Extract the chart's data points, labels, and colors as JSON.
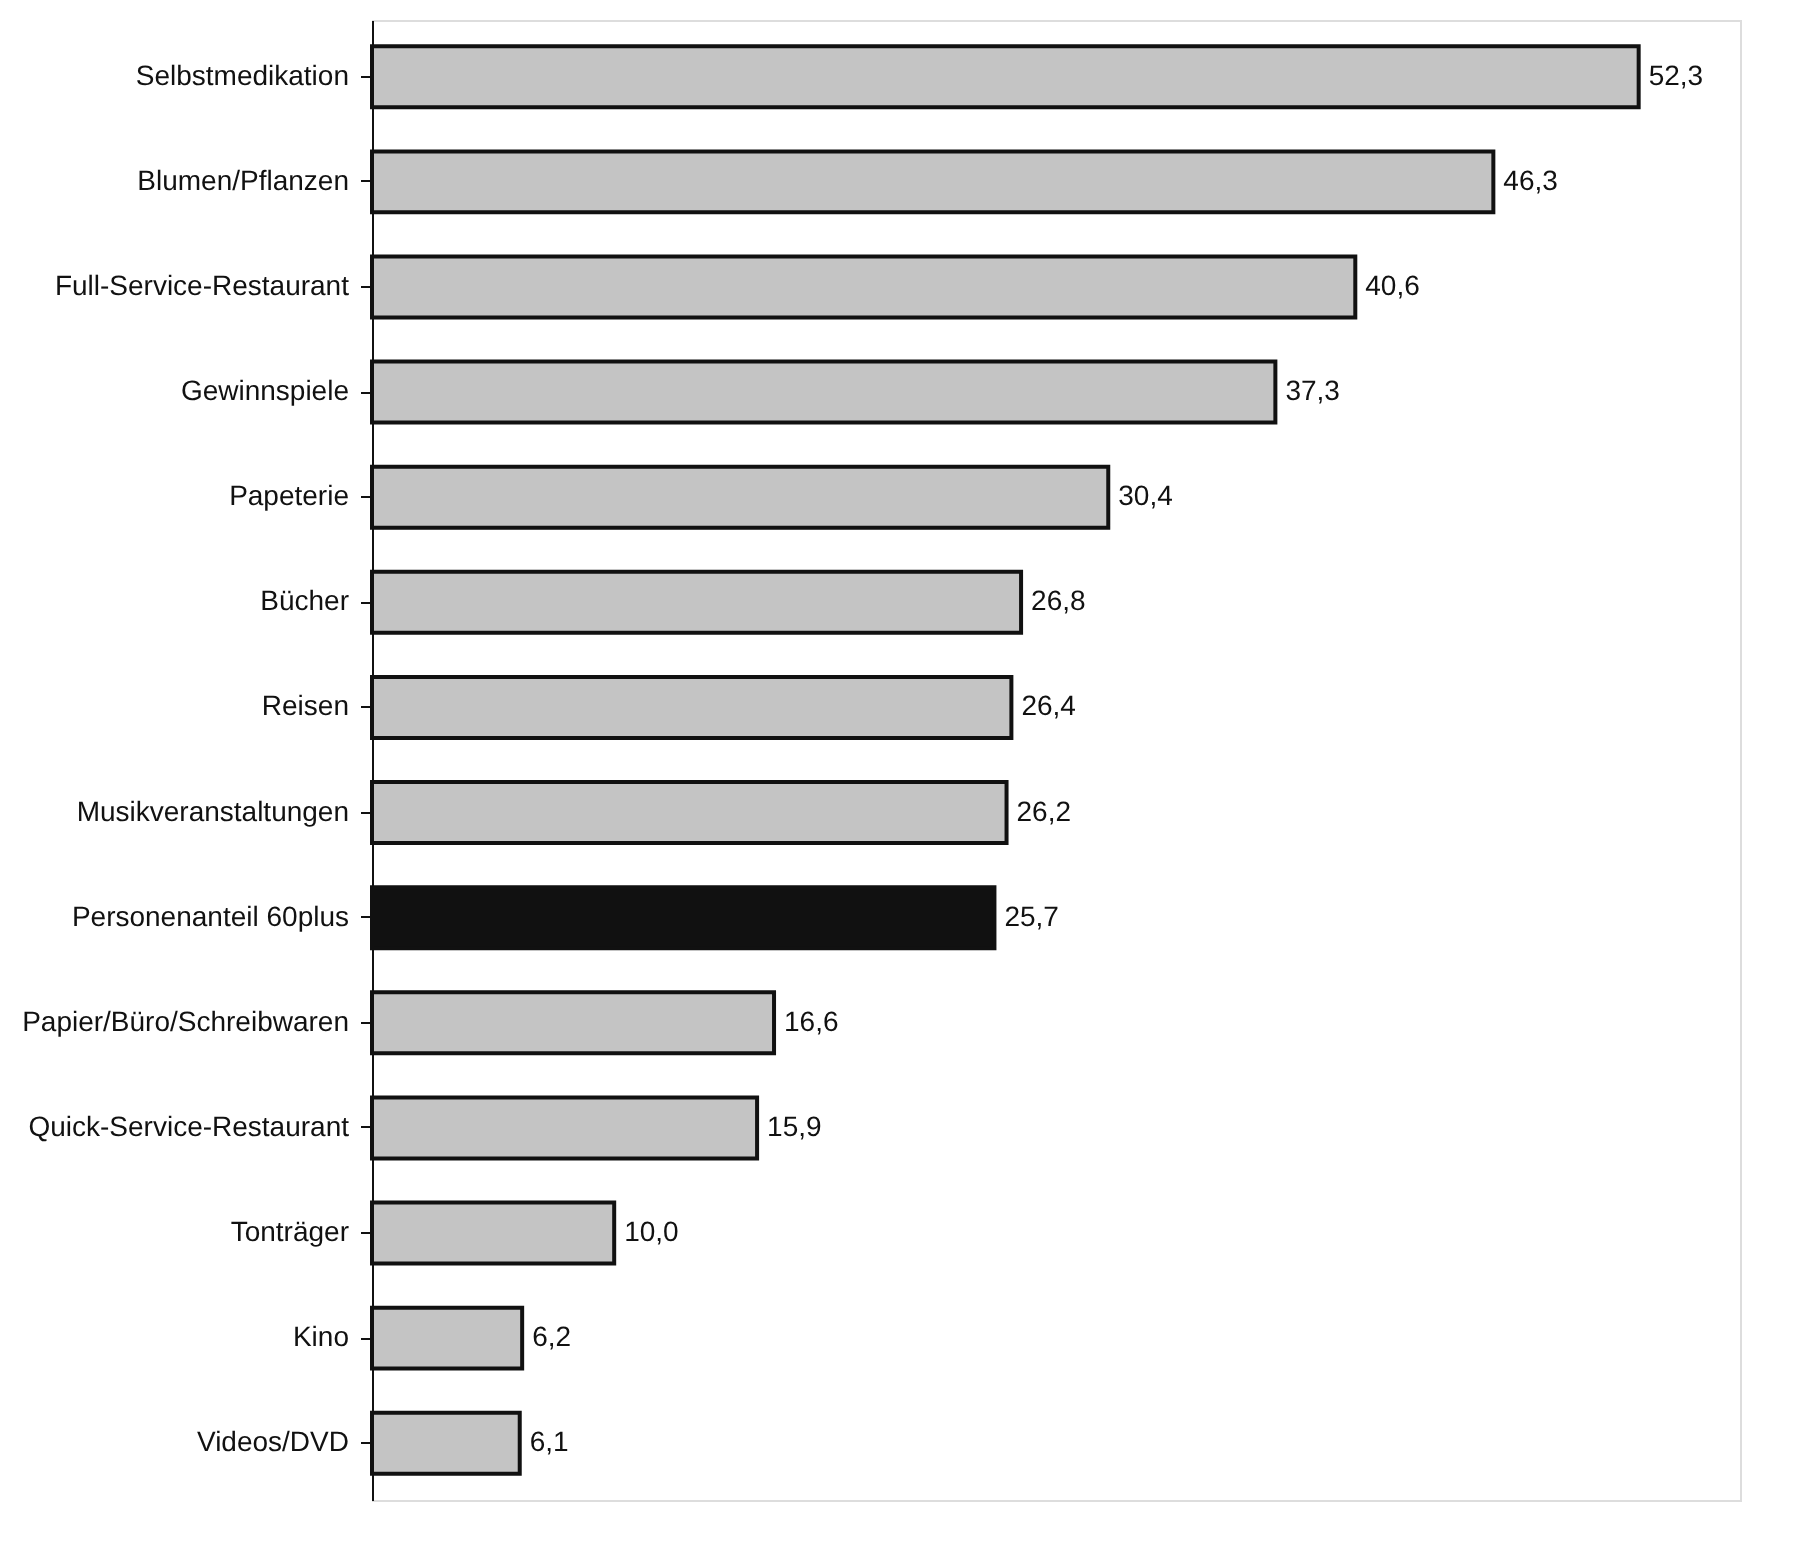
{
  "chart_data": {
    "type": "bar",
    "orientation": "horizontal",
    "categories": [
      "Selbstmedikation",
      "Blumen/Pflanzen",
      "Full-Service-Restaurant",
      "Gewinnspiele",
      "Papeterie",
      "Bücher",
      "Reisen",
      "Musikveranstaltungen",
      "Personenanteil 60plus",
      "Papier/Büro/Schreibwaren",
      "Quick-Service-Restaurant",
      "Tonträger",
      "Kino",
      "Videos/DVD"
    ],
    "values": [
      52.3,
      46.3,
      40.6,
      37.3,
      30.4,
      26.8,
      26.4,
      26.2,
      25.7,
      16.6,
      15.9,
      10.0,
      6.2,
      6.1
    ],
    "value_labels": [
      "52,3",
      "46,3",
      "40,6",
      "37,3",
      "30,4",
      "26,8",
      "26,4",
      "26,2",
      "25,7",
      "16,6",
      "15,9",
      "10,0",
      "6,2",
      "6,1"
    ],
    "colors": [
      "#c4c4c4",
      "#c4c4c4",
      "#c4c4c4",
      "#c4c4c4",
      "#c4c4c4",
      "#c4c4c4",
      "#c4c4c4",
      "#c4c4c4",
      "#111111",
      "#c4c4c4",
      "#c4c4c4",
      "#c4c4c4",
      "#c4c4c4",
      "#c4c4c4"
    ]
  }
}
